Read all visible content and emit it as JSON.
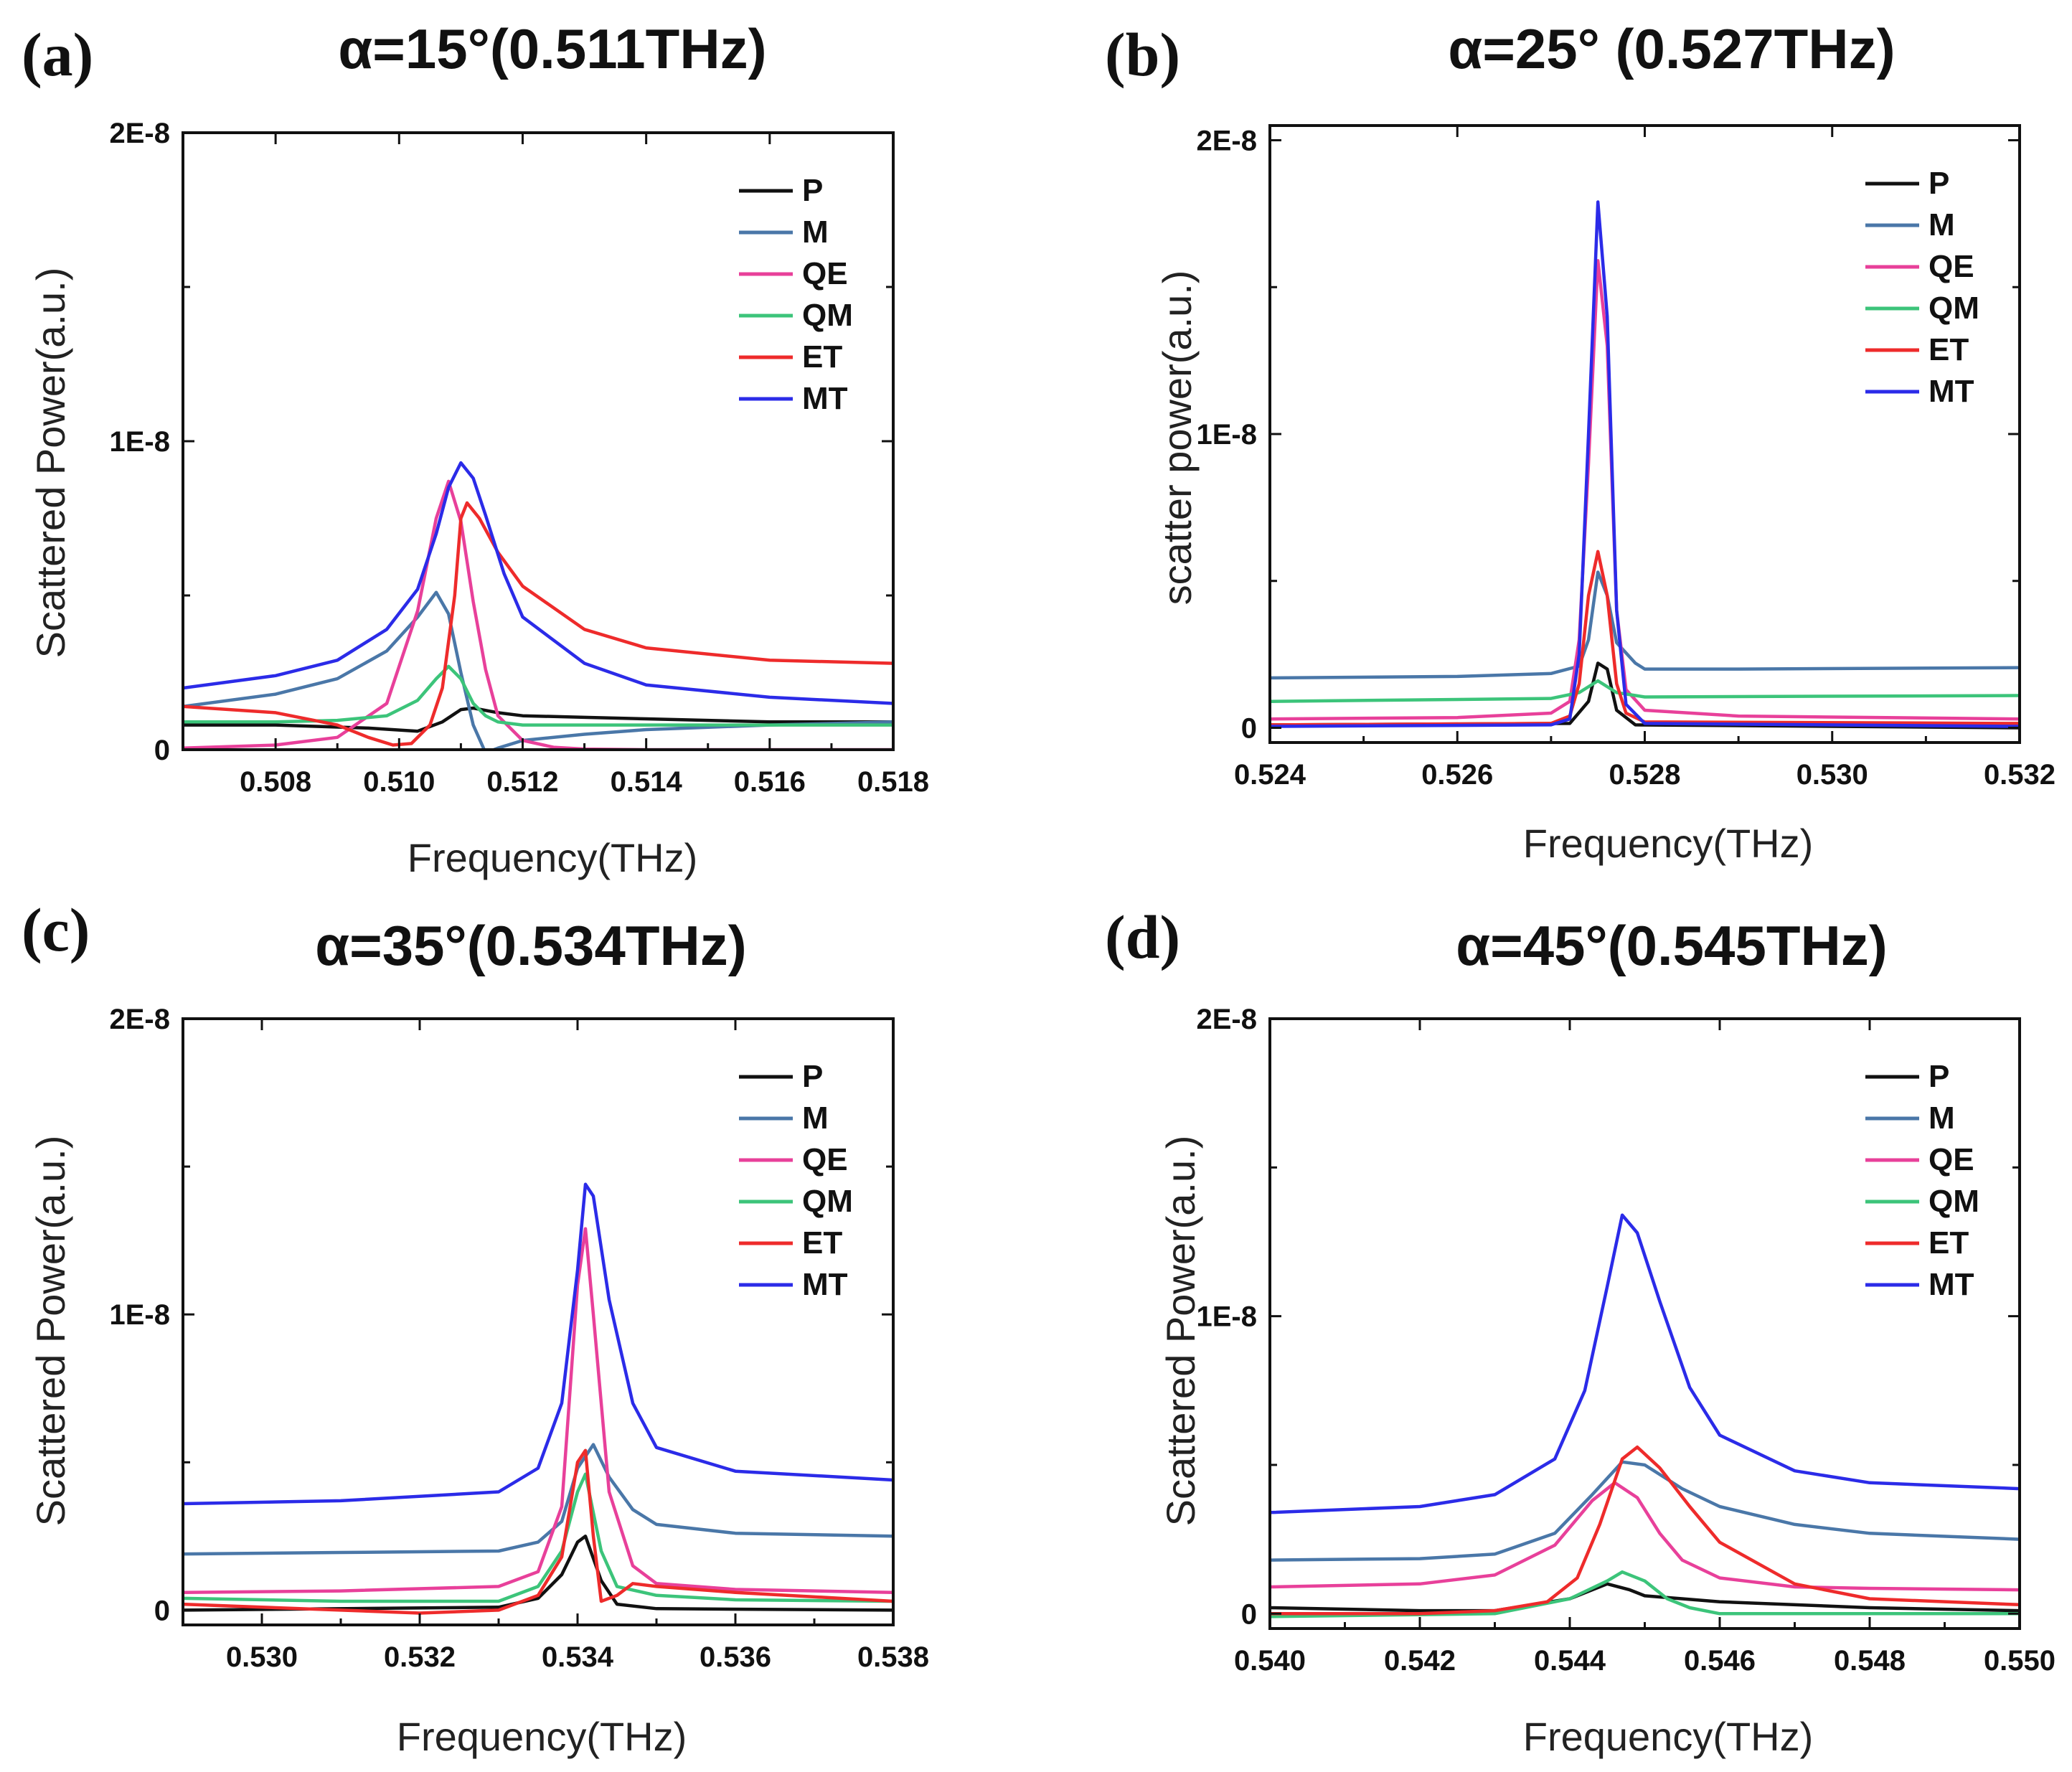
{
  "chart_data": [
    {
      "type": "line",
      "panel_label": "(a)",
      "title": "α=15°(0.511THz)",
      "xlabel": "Frequency(THz)",
      "ylabel": "Scattered Power(a.u.)",
      "xlim": [
        0.5065,
        0.518
      ],
      "ylim": [
        0,
        2e-08
      ],
      "x_ticks": [
        "0.508",
        "0.510",
        "0.512",
        "0.514",
        "0.516",
        "0.518"
      ],
      "y_ticks": [
        "0",
        "1E-8",
        "2E-8"
      ],
      "legend_position": "top-right",
      "series": [
        {
          "name": "P",
          "color": "#111111",
          "x": [
            0.5065,
            0.508,
            0.5095,
            0.5103,
            0.5107,
            0.511,
            0.5112,
            0.5116,
            0.512,
            0.513,
            0.514,
            0.516,
            0.518
          ],
          "y": [
            8e-10,
            8e-10,
            7e-10,
            6e-10,
            9e-10,
            1.3e-09,
            1.35e-09,
            1.2e-09,
            1.1e-09,
            1.05e-09,
            1e-09,
            9e-10,
            9e-10
          ]
        },
        {
          "name": "M",
          "color": "#4a77a8",
          "x": [
            0.5065,
            0.508,
            0.509,
            0.5098,
            0.5103,
            0.5106,
            0.5108,
            0.511,
            0.5112,
            0.5114,
            0.5116,
            0.512,
            0.513,
            0.514,
            0.516,
            0.518
          ],
          "y": [
            1.4e-09,
            1.8e-09,
            2.3e-09,
            3.2e-09,
            4.3e-09,
            5.1e-09,
            4.4e-09,
            2.5e-09,
            8e-10,
            -1e-10,
            5e-11,
            3e-10,
            5e-10,
            6.5e-10,
            8e-10,
            9e-10
          ]
        },
        {
          "name": "QE",
          "color": "#e8409a",
          "x": [
            0.5065,
            0.508,
            0.509,
            0.5098,
            0.5103,
            0.5106,
            0.5108,
            0.511,
            0.5112,
            0.5114,
            0.5116,
            0.512,
            0.5125,
            0.513,
            0.514,
            0.516,
            0.518
          ],
          "y": [
            5e-11,
            1.5e-10,
            4e-10,
            1.5e-09,
            4.5e-09,
            7.5e-09,
            8.7e-09,
            7.4e-09,
            4.8e-09,
            2.6e-09,
            1.1e-09,
            3e-10,
            8e-11,
            2e-11,
            0.0,
            0.0,
            0.0
          ]
        },
        {
          "name": "QM",
          "color": "#3cc47a",
          "x": [
            0.5065,
            0.508,
            0.509,
            0.5098,
            0.5103,
            0.5106,
            0.5108,
            0.511,
            0.5112,
            0.5114,
            0.5116,
            0.512,
            0.513,
            0.514,
            0.516,
            0.518
          ],
          "y": [
            9e-10,
            9e-10,
            9.5e-10,
            1.1e-09,
            1.6e-09,
            2.3e-09,
            2.7e-09,
            2.3e-09,
            1.5e-09,
            1.1e-09,
            9e-10,
            8e-10,
            8e-10,
            8e-10,
            8e-10,
            8e-10
          ]
        },
        {
          "name": "ET",
          "color": "#ee2b2b",
          "x": [
            0.5065,
            0.508,
            0.509,
            0.5095,
            0.5099,
            0.5102,
            0.5105,
            0.5107,
            0.5109,
            0.511,
            0.5111,
            0.5113,
            0.5116,
            0.512,
            0.513,
            0.514,
            0.516,
            0.518
          ],
          "y": [
            1.4e-09,
            1.2e-09,
            8e-10,
            4e-10,
            1.5e-10,
            2e-10,
            8e-10,
            2e-09,
            5e-09,
            7.5e-09,
            8e-09,
            7.5e-09,
            6.4e-09,
            5.3e-09,
            3.9e-09,
            3.3e-09,
            2.9e-09,
            2.8e-09
          ]
        },
        {
          "name": "MT",
          "color": "#2b2be8",
          "x": [
            0.5065,
            0.508,
            0.509,
            0.5098,
            0.5103,
            0.5106,
            0.5108,
            0.511,
            0.5112,
            0.5114,
            0.5117,
            0.512,
            0.513,
            0.514,
            0.516,
            0.518
          ],
          "y": [
            2e-09,
            2.4e-09,
            2.9e-09,
            3.9e-09,
            5.2e-09,
            7e-09,
            8.5e-09,
            9.3e-09,
            8.8e-09,
            7.6e-09,
            5.7e-09,
            4.3e-09,
            2.8e-09,
            2.1e-09,
            1.7e-09,
            1.5e-09
          ]
        }
      ]
    },
    {
      "type": "line",
      "panel_label": "(b)",
      "title": "α=25° (0.527THz)",
      "xlabel": "Frequency(THz)",
      "ylabel": "scatter power(a.u.)",
      "xlim": [
        0.524,
        0.532
      ],
      "ylim": [
        -5e-10,
        2.05e-08
      ],
      "x_ticks": [
        "0.524",
        "0.526",
        "0.528",
        "0.530",
        "0.532"
      ],
      "y_ticks": [
        "0",
        "1E-8",
        "2E-8"
      ],
      "legend_position": "top-right",
      "series": [
        {
          "name": "P",
          "color": "#111111",
          "x": [
            0.524,
            0.5272,
            0.5274,
            0.5275,
            0.5276,
            0.5277,
            0.5279,
            0.532
          ],
          "y": [
            1e-10,
            1.5e-10,
            9e-10,
            2.2e-09,
            2e-09,
            6e-10,
            1e-10,
            0.0
          ]
        },
        {
          "name": "M",
          "color": "#4a77a8",
          "x": [
            0.524,
            0.526,
            0.527,
            0.5273,
            0.5274,
            0.5275,
            0.5276,
            0.5277,
            0.5279,
            0.528,
            0.529,
            0.532
          ],
          "y": [
            1.7e-09,
            1.75e-09,
            1.85e-09,
            2.1e-09,
            3e-09,
            5.3e-09,
            4.5e-09,
            2.9e-09,
            2.2e-09,
            2e-09,
            2e-09,
            2.05e-09
          ]
        },
        {
          "name": "QE",
          "color": "#e8409a",
          "x": [
            0.524,
            0.526,
            0.527,
            0.5272,
            0.5273,
            0.5274,
            0.5275,
            0.5276,
            0.5277,
            0.5278,
            0.528,
            0.529,
            0.532
          ],
          "y": [
            3e-10,
            3.5e-10,
            5e-10,
            9e-10,
            3e-09,
            9e-09,
            1.59e-08,
            1.3e-08,
            4e-09,
            1.3e-09,
            6e-10,
            4e-10,
            3e-10
          ]
        },
        {
          "name": "QM",
          "color": "#3cc47a",
          "x": [
            0.524,
            0.527,
            0.5273,
            0.5275,
            0.5277,
            0.528,
            0.532
          ],
          "y": [
            9e-10,
            1e-09,
            1.2e-09,
            1.6e-09,
            1.2e-09,
            1.05e-09,
            1.1e-09
          ]
        },
        {
          "name": "ET",
          "color": "#ee2b2b",
          "x": [
            0.524,
            0.527,
            0.5272,
            0.5273,
            0.5274,
            0.5275,
            0.5276,
            0.5277,
            0.5278,
            0.528,
            0.532
          ],
          "y": [
            1e-10,
            1.5e-10,
            4e-10,
            1.5e-09,
            4.5e-09,
            6e-09,
            4.5e-09,
            1.5e-09,
            5e-10,
            2e-10,
            1.5e-10
          ]
        },
        {
          "name": "MT",
          "color": "#2b2be8",
          "x": [
            0.524,
            0.527,
            0.5272,
            0.5273,
            0.5274,
            0.5275,
            0.5276,
            0.5277,
            0.5278,
            0.528,
            0.532
          ],
          "y": [
            5e-11,
            1e-10,
            3e-10,
            2.5e-09,
            1e-08,
            1.79e-08,
            1.4e-08,
            4e-09,
            8e-10,
            1.5e-10,
            5e-11
          ]
        }
      ]
    },
    {
      "type": "line",
      "panel_label": "(c)",
      "title": "α=35°(0.534THz)",
      "xlabel": "Frequency(THz)",
      "ylabel": "Scattered Power(a.u.)",
      "xlim": [
        0.529,
        0.538
      ],
      "ylim": [
        -5e-10,
        2e-08
      ],
      "x_ticks": [
        "0.530",
        "0.532",
        "0.534",
        "0.536",
        "0.538"
      ],
      "y_ticks": [
        "0",
        "1E-8",
        "2E-8"
      ],
      "legend_position": "top-right",
      "series": [
        {
          "name": "P",
          "color": "#111111",
          "x": [
            0.529,
            0.533,
            0.5335,
            0.5338,
            0.534,
            0.5341,
            0.5343,
            0.5345,
            0.535,
            0.538
          ],
          "y": [
            0.0,
            1e-10,
            4e-10,
            1.2e-09,
            2.3e-09,
            2.5e-09,
            1e-09,
            2e-10,
            5e-11,
            0.0
          ]
        },
        {
          "name": "M",
          "color": "#4a77a8",
          "x": [
            0.529,
            0.531,
            0.533,
            0.5335,
            0.5338,
            0.534,
            0.5342,
            0.5344,
            0.5347,
            0.535,
            0.536,
            0.538
          ],
          "y": [
            1.9e-09,
            1.95e-09,
            2e-09,
            2.3e-09,
            3e-09,
            4.8e-09,
            5.6e-09,
            4.5e-09,
            3.4e-09,
            2.9e-09,
            2.6e-09,
            2.5e-09
          ]
        },
        {
          "name": "QE",
          "color": "#e8409a",
          "x": [
            0.529,
            0.531,
            0.533,
            0.5335,
            0.5338,
            0.534,
            0.5341,
            0.5342,
            0.5344,
            0.5347,
            0.535,
            0.536,
            0.538
          ],
          "y": [
            6e-10,
            6.5e-10,
            8e-10,
            1.3e-09,
            3.5e-09,
            1.1e-08,
            1.29e-08,
            1e-08,
            4e-09,
            1.5e-09,
            9e-10,
            7e-10,
            6e-10
          ]
        },
        {
          "name": "QM",
          "color": "#3cc47a",
          "x": [
            0.529,
            0.531,
            0.533,
            0.5335,
            0.5338,
            0.534,
            0.5341,
            0.5343,
            0.5345,
            0.535,
            0.536,
            0.538
          ],
          "y": [
            4e-10,
            3e-10,
            3e-10,
            8e-10,
            2e-09,
            4e-09,
            4.6e-09,
            2e-09,
            8e-10,
            5e-10,
            3.5e-10,
            3e-10
          ]
        },
        {
          "name": "ET",
          "color": "#ee2b2b",
          "x": [
            0.529,
            0.531,
            0.532,
            0.533,
            0.5335,
            0.5338,
            0.534,
            0.5341,
            0.5342,
            0.5343,
            0.5345,
            0.5347,
            0.535,
            0.536,
            0.538
          ],
          "y": [
            2e-10,
            0.0,
            -1e-10,
            0.0,
            5e-10,
            1.8e-09,
            5e-09,
            5.4e-09,
            2.5e-09,
            3e-10,
            5e-10,
            9e-10,
            8e-10,
            6e-10,
            3e-10
          ]
        },
        {
          "name": "MT",
          "color": "#2b2be8",
          "x": [
            0.529,
            0.531,
            0.533,
            0.5335,
            0.5338,
            0.534,
            0.5341,
            0.5342,
            0.5344,
            0.5347,
            0.535,
            0.536,
            0.538
          ],
          "y": [
            3.6e-09,
            3.7e-09,
            4e-09,
            4.8e-09,
            7e-09,
            1.15e-08,
            1.44e-08,
            1.4e-08,
            1.05e-08,
            7e-09,
            5.5e-09,
            4.7e-09,
            4.4e-09
          ]
        }
      ]
    },
    {
      "type": "line",
      "panel_label": "(d)",
      "title": "α=45°(0.545THz)",
      "xlabel": "Frequency(THz)",
      "ylabel": "Scattered Power(a.u.)",
      "xlim": [
        0.54,
        0.55
      ],
      "ylim": [
        -5e-10,
        2e-08
      ],
      "x_ticks": [
        "0.540",
        "0.542",
        "0.544",
        "0.546",
        "0.548",
        "0.550"
      ],
      "y_ticks": [
        "0",
        "1E-8",
        "2E-8"
      ],
      "legend_position": "top-right",
      "series": [
        {
          "name": "P",
          "color": "#111111",
          "x": [
            0.54,
            0.542,
            0.543,
            0.544,
            0.5445,
            0.5448,
            0.545,
            0.5455,
            0.546,
            0.548,
            0.55
          ],
          "y": [
            2e-10,
            1e-10,
            1e-10,
            5e-10,
            1e-09,
            8e-10,
            6e-10,
            5e-10,
            4e-10,
            2e-10,
            1e-10
          ]
        },
        {
          "name": "M",
          "color": "#4a77a8",
          "x": [
            0.54,
            0.542,
            0.543,
            0.5438,
            0.5443,
            0.5447,
            0.545,
            0.5455,
            0.546,
            0.547,
            0.548,
            0.55
          ],
          "y": [
            1.8e-09,
            1.85e-09,
            2e-09,
            2.7e-09,
            4e-09,
            5.1e-09,
            5e-09,
            4.2e-09,
            3.6e-09,
            3e-09,
            2.7e-09,
            2.5e-09
          ]
        },
        {
          "name": "QE",
          "color": "#e8409a",
          "x": [
            0.54,
            0.542,
            0.543,
            0.5438,
            0.5443,
            0.5446,
            0.5449,
            0.5452,
            0.5455,
            0.546,
            0.547,
            0.548,
            0.55
          ],
          "y": [
            9e-10,
            1e-09,
            1.3e-09,
            2.3e-09,
            3.8e-09,
            4.4e-09,
            3.9e-09,
            2.7e-09,
            1.8e-09,
            1.2e-09,
            9e-10,
            8.5e-10,
            8e-10
          ]
        },
        {
          "name": "QM",
          "color": "#3cc47a",
          "x": [
            0.54,
            0.543,
            0.544,
            0.5445,
            0.5447,
            0.545,
            0.5453,
            0.5456,
            0.546,
            0.55
          ],
          "y": [
            -1e-10,
            0.0,
            5e-10,
            1.1e-09,
            1.4e-09,
            1.1e-09,
            5e-10,
            2e-10,
            0.0,
            0.0
          ]
        },
        {
          "name": "ET",
          "color": "#ee2b2b",
          "x": [
            0.54,
            0.542,
            0.543,
            0.5437,
            0.5441,
            0.5444,
            0.5447,
            0.5449,
            0.5452,
            0.5456,
            0.546,
            0.547,
            0.548,
            0.55
          ],
          "y": [
            0.0,
            0.0,
            1e-10,
            4e-10,
            1.2e-09,
            3e-09,
            5.2e-09,
            5.6e-09,
            4.9e-09,
            3.6e-09,
            2.4e-09,
            1e-09,
            5e-10,
            3e-10
          ]
        },
        {
          "name": "MT",
          "color": "#2b2be8",
          "x": [
            0.54,
            0.542,
            0.543,
            0.5438,
            0.5442,
            0.5445,
            0.5447,
            0.5449,
            0.5452,
            0.5456,
            0.546,
            0.547,
            0.548,
            0.55
          ],
          "y": [
            3.4e-09,
            3.6e-09,
            4e-09,
            5.2e-09,
            7.5e-09,
            1.1e-08,
            1.34e-08,
            1.28e-08,
            1.05e-08,
            7.6e-09,
            6e-09,
            4.8e-09,
            4.4e-09,
            4.2e-09
          ]
        }
      ]
    }
  ]
}
